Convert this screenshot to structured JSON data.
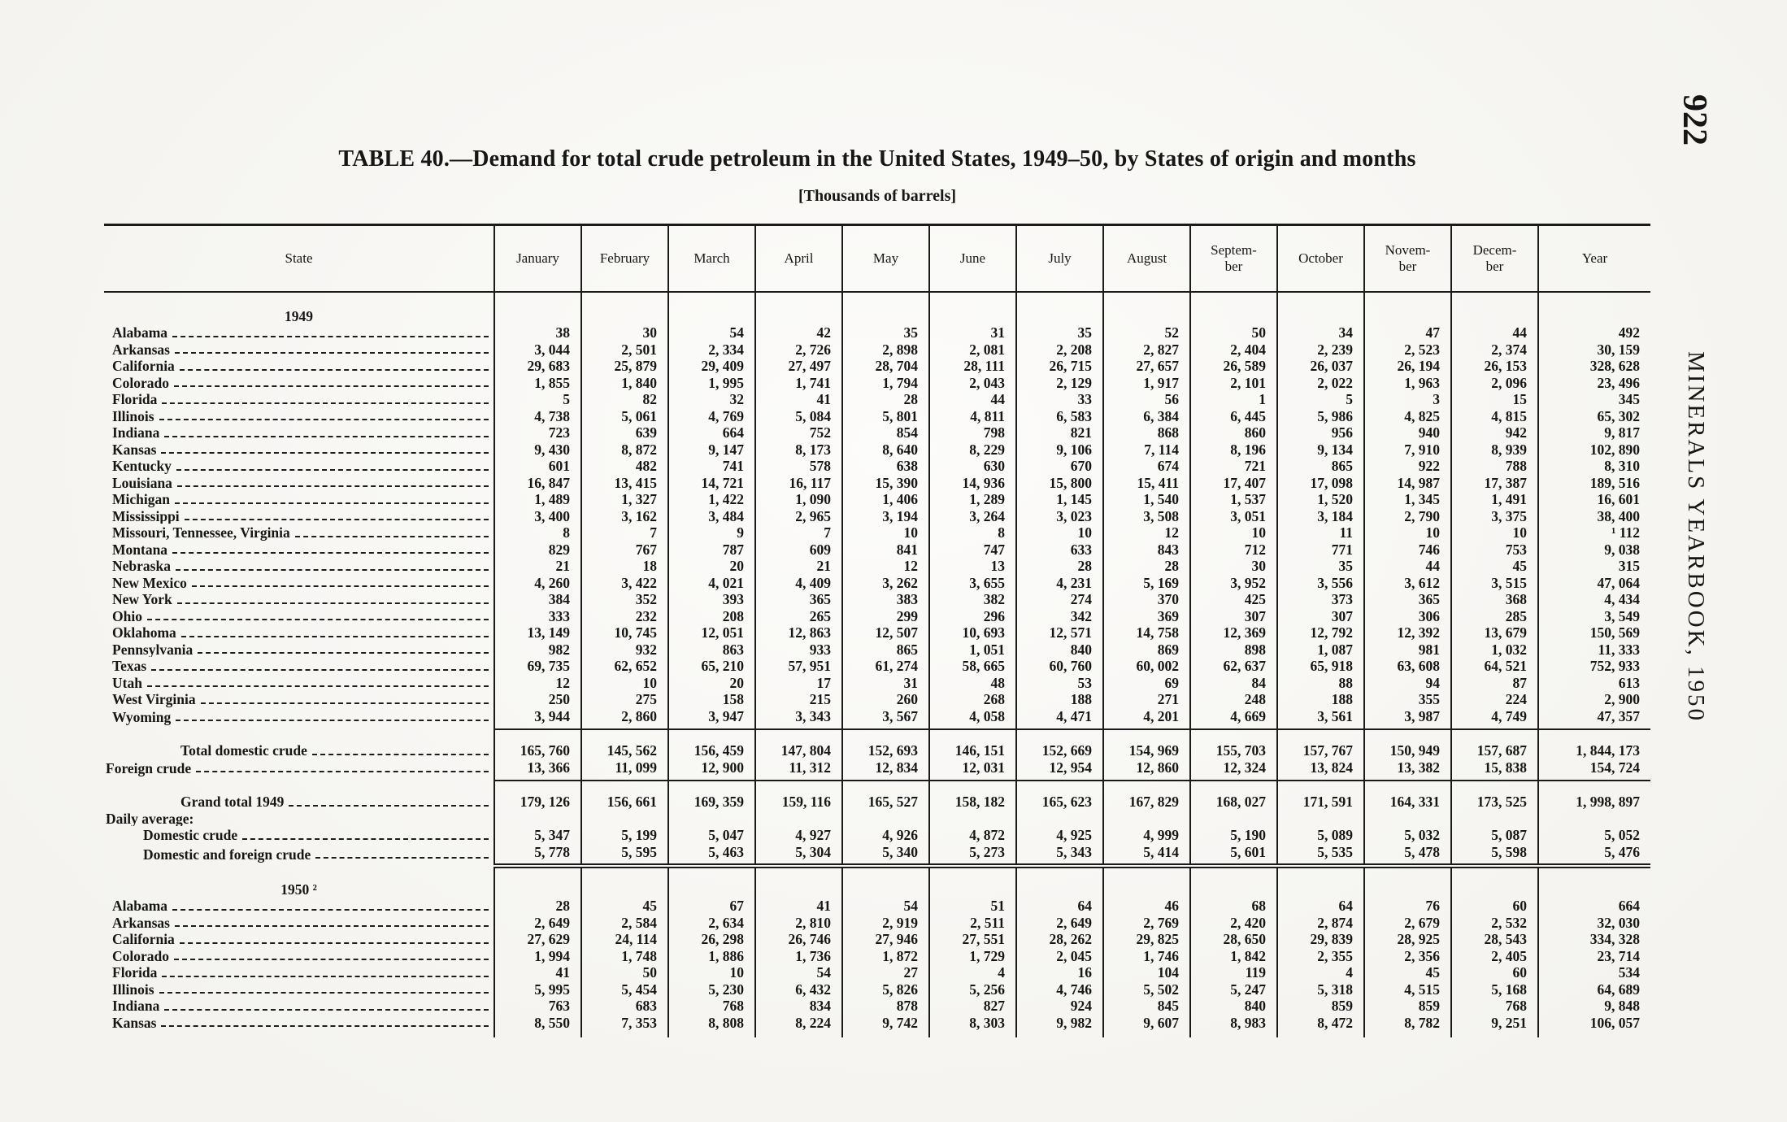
{
  "page": {
    "page_number": "922",
    "running_head": "MINERALS YEARBOOK, 1950",
    "title": "TABLE 40.—Demand for total crude petroleum in the United States, 1949–50, by States of origin and months",
    "subtitle": "[Thousands of barrels]"
  },
  "table": {
    "columns": [
      "State",
      "January",
      "February",
      "March",
      "April",
      "May",
      "June",
      "July",
      "August",
      "Septem-\nber",
      "October",
      "Novem-\nber",
      "Decem-\nber",
      "Year"
    ],
    "rows": [
      {
        "section": true,
        "label": "1949"
      },
      {
        "label": "Alabama",
        "indent": 1,
        "values": [
          "38",
          "30",
          "54",
          "42",
          "35",
          "31",
          "35",
          "52",
          "50",
          "34",
          "47",
          "44",
          "492"
        ]
      },
      {
        "label": "Arkansas",
        "indent": 1,
        "values": [
          "3, 044",
          "2, 501",
          "2, 334",
          "2, 726",
          "2, 898",
          "2, 081",
          "2, 208",
          "2, 827",
          "2, 404",
          "2, 239",
          "2, 523",
          "2, 374",
          "30, 159"
        ]
      },
      {
        "label": "California",
        "indent": 1,
        "values": [
          "29, 683",
          "25, 879",
          "29, 409",
          "27, 497",
          "28, 704",
          "28, 111",
          "26, 715",
          "27, 657",
          "26, 589",
          "26, 037",
          "26, 194",
          "26, 153",
          "328, 628"
        ]
      },
      {
        "label": "Colorado",
        "indent": 1,
        "values": [
          "1, 855",
          "1, 840",
          "1, 995",
          "1, 741",
          "1, 794",
          "2, 043",
          "2, 129",
          "1, 917",
          "2, 101",
          "2, 022",
          "1, 963",
          "2, 096",
          "23, 496"
        ]
      },
      {
        "label": "Florida",
        "indent": 1,
        "values": [
          "5",
          "82",
          "32",
          "41",
          "28",
          "44",
          "33",
          "56",
          "1",
          "5",
          "3",
          "15",
          "345"
        ]
      },
      {
        "label": "Illinois",
        "indent": 1,
        "values": [
          "4, 738",
          "5, 061",
          "4, 769",
          "5, 084",
          "5, 801",
          "4, 811",
          "6, 583",
          "6, 384",
          "6, 445",
          "5, 986",
          "4, 825",
          "4, 815",
          "65, 302"
        ]
      },
      {
        "label": "Indiana",
        "indent": 1,
        "values": [
          "723",
          "639",
          "664",
          "752",
          "854",
          "798",
          "821",
          "868",
          "860",
          "956",
          "940",
          "942",
          "9, 817"
        ]
      },
      {
        "label": "Kansas",
        "indent": 1,
        "values": [
          "9, 430",
          "8, 872",
          "9, 147",
          "8, 173",
          "8, 640",
          "8, 229",
          "9, 106",
          "7, 114",
          "8, 196",
          "9, 134",
          "7, 910",
          "8, 939",
          "102, 890"
        ]
      },
      {
        "label": "Kentucky",
        "indent": 1,
        "values": [
          "601",
          "482",
          "741",
          "578",
          "638",
          "630",
          "670",
          "674",
          "721",
          "865",
          "922",
          "788",
          "8, 310"
        ]
      },
      {
        "label": "Louisiana",
        "indent": 1,
        "values": [
          "16, 847",
          "13, 415",
          "14, 721",
          "16, 117",
          "15, 390",
          "14, 936",
          "15, 800",
          "15, 411",
          "17, 407",
          "17, 098",
          "14, 987",
          "17, 387",
          "189, 516"
        ]
      },
      {
        "label": "Michigan",
        "indent": 1,
        "values": [
          "1, 489",
          "1, 327",
          "1, 422",
          "1, 090",
          "1, 406",
          "1, 289",
          "1, 145",
          "1, 540",
          "1, 537",
          "1, 520",
          "1, 345",
          "1, 491",
          "16, 601"
        ]
      },
      {
        "label": "Mississippi",
        "indent": 1,
        "values": [
          "3, 400",
          "3, 162",
          "3, 484",
          "2, 965",
          "3, 194",
          "3, 264",
          "3, 023",
          "3, 508",
          "3, 051",
          "3, 184",
          "2, 790",
          "3, 375",
          "38, 400"
        ]
      },
      {
        "label": "Missouri, Tennessee, Virginia",
        "indent": 1,
        "values": [
          "8",
          "7",
          "9",
          "7",
          "10",
          "8",
          "10",
          "12",
          "10",
          "11",
          "10",
          "10",
          "¹ 112"
        ]
      },
      {
        "label": "Montana",
        "indent": 1,
        "values": [
          "829",
          "767",
          "787",
          "609",
          "841",
          "747",
          "633",
          "843",
          "712",
          "771",
          "746",
          "753",
          "9, 038"
        ]
      },
      {
        "label": "Nebraska",
        "indent": 1,
        "values": [
          "21",
          "18",
          "20",
          "21",
          "12",
          "13",
          "28",
          "28",
          "30",
          "35",
          "44",
          "45",
          "315"
        ]
      },
      {
        "label": "New Mexico",
        "indent": 1,
        "values": [
          "4, 260",
          "3, 422",
          "4, 021",
          "4, 409",
          "3, 262",
          "3, 655",
          "4, 231",
          "5, 169",
          "3, 952",
          "3, 556",
          "3, 612",
          "3, 515",
          "47, 064"
        ]
      },
      {
        "label": "New York",
        "indent": 1,
        "values": [
          "384",
          "352",
          "393",
          "365",
          "383",
          "382",
          "274",
          "370",
          "425",
          "373",
          "365",
          "368",
          "4, 434"
        ]
      },
      {
        "label": "Ohio",
        "indent": 1,
        "values": [
          "333",
          "232",
          "208",
          "265",
          "299",
          "296",
          "342",
          "369",
          "307",
          "307",
          "306",
          "285",
          "3, 549"
        ]
      },
      {
        "label": "Oklahoma",
        "indent": 1,
        "values": [
          "13, 149",
          "10, 745",
          "12, 051",
          "12, 863",
          "12, 507",
          "10, 693",
          "12, 571",
          "14, 758",
          "12, 369",
          "12, 792",
          "12, 392",
          "13, 679",
          "150, 569"
        ]
      },
      {
        "label": "Pennsylvania",
        "indent": 1,
        "values": [
          "982",
          "932",
          "863",
          "933",
          "865",
          "1, 051",
          "840",
          "869",
          "898",
          "1, 087",
          "981",
          "1, 032",
          "11, 333"
        ]
      },
      {
        "label": "Texas",
        "indent": 1,
        "values": [
          "69, 735",
          "62, 652",
          "65, 210",
          "57, 951",
          "61, 274",
          "58, 665",
          "60, 760",
          "60, 002",
          "62, 637",
          "65, 918",
          "63, 608",
          "64, 521",
          "752, 933"
        ]
      },
      {
        "label": "Utah",
        "indent": 1,
        "values": [
          "12",
          "10",
          "20",
          "17",
          "31",
          "48",
          "53",
          "69",
          "84",
          "88",
          "94",
          "87",
          "613"
        ]
      },
      {
        "label": "West Virginia",
        "indent": 1,
        "values": [
          "250",
          "275",
          "158",
          "215",
          "260",
          "268",
          "188",
          "271",
          "248",
          "188",
          "355",
          "224",
          "2, 900"
        ]
      },
      {
        "label": "Wyoming",
        "indent": 1,
        "rule_after": "single",
        "values": [
          "3, 944",
          "2, 860",
          "3, 947",
          "3, 343",
          "3, 567",
          "4, 058",
          "4, 471",
          "4, 201",
          "4, 669",
          "3, 561",
          "3, 987",
          "4, 749",
          "47, 357"
        ]
      },
      {
        "label": "Total domestic crude",
        "indent": 3,
        "extra_space": true,
        "values": [
          "165, 760",
          "145, 562",
          "156, 459",
          "147, 804",
          "152, 693",
          "146, 151",
          "152, 669",
          "154, 969",
          "155, 703",
          "157, 767",
          "150, 949",
          "157, 687",
          "1, 844, 173"
        ]
      },
      {
        "label": "Foreign crude",
        "indent": 0,
        "rule_after": "single",
        "values": [
          "13, 366",
          "11, 099",
          "12, 900",
          "11, 312",
          "12, 834",
          "12, 031",
          "12, 954",
          "12, 860",
          "12, 324",
          "13, 824",
          "13, 382",
          "15, 838",
          "154, 724"
        ]
      },
      {
        "label": "Grand total 1949",
        "indent": 3,
        "extra_space": true,
        "values": [
          "179, 126",
          "156, 661",
          "169, 359",
          "159, 116",
          "165, 527",
          "158, 182",
          "165, 623",
          "167, 829",
          "168, 027",
          "171, 591",
          "164, 331",
          "173, 525",
          "1, 998, 897"
        ]
      },
      {
        "label": "Daily average:",
        "indent": 0,
        "leader": false,
        "values": [
          "",
          "",
          "",
          "",
          "",
          "",
          "",
          "",
          "",
          "",
          "",
          "",
          ""
        ]
      },
      {
        "label": "Domestic crude",
        "indent": 2,
        "values": [
          "5, 347",
          "5, 199",
          "5, 047",
          "4, 927",
          "4, 926",
          "4, 872",
          "4, 925",
          "4, 999",
          "5, 190",
          "5, 089",
          "5, 032",
          "5, 087",
          "5, 052"
        ]
      },
      {
        "label": "Domestic and foreign crude",
        "indent": 2,
        "rule_after": "double",
        "values": [
          "5, 778",
          "5, 595",
          "5, 463",
          "5, 304",
          "5, 340",
          "5, 273",
          "5, 343",
          "5, 414",
          "5, 601",
          "5, 535",
          "5, 478",
          "5, 598",
          "5, 476"
        ]
      },
      {
        "section": true,
        "label": "1950 ²",
        "extra_space": true
      },
      {
        "label": "Alabama",
        "indent": 1,
        "values": [
          "28",
          "45",
          "67",
          "41",
          "54",
          "51",
          "64",
          "46",
          "68",
          "64",
          "76",
          "60",
          "664"
        ]
      },
      {
        "label": "Arkansas",
        "indent": 1,
        "values": [
          "2, 649",
          "2, 584",
          "2, 634",
          "2, 810",
          "2, 919",
          "2, 511",
          "2, 649",
          "2, 769",
          "2, 420",
          "2, 874",
          "2, 679",
          "2, 532",
          "32, 030"
        ]
      },
      {
        "label": "California",
        "indent": 1,
        "values": [
          "27, 629",
          "24, 114",
          "26, 298",
          "26, 746",
          "27, 946",
          "27, 551",
          "28, 262",
          "29, 825",
          "28, 650",
          "29, 839",
          "28, 925",
          "28, 543",
          "334, 328"
        ]
      },
      {
        "label": "Colorado",
        "indent": 1,
        "values": [
          "1, 994",
          "1, 748",
          "1, 886",
          "1, 736",
          "1, 872",
          "1, 729",
          "2, 045",
          "1, 746",
          "1, 842",
          "2, 355",
          "2, 356",
          "2, 405",
          "23, 714"
        ]
      },
      {
        "label": "Florida",
        "indent": 1,
        "values": [
          "41",
          "50",
          "10",
          "54",
          "27",
          "4",
          "16",
          "104",
          "119",
          "4",
          "45",
          "60",
          "534"
        ]
      },
      {
        "label": "Illinois",
        "indent": 1,
        "values": [
          "5, 995",
          "5, 454",
          "5, 230",
          "6, 432",
          "5, 826",
          "5, 256",
          "4, 746",
          "5, 502",
          "5, 247",
          "5, 318",
          "4, 515",
          "5, 168",
          "64, 689"
        ]
      },
      {
        "label": "Indiana",
        "indent": 1,
        "values": [
          "763",
          "683",
          "768",
          "834",
          "878",
          "827",
          "924",
          "845",
          "840",
          "859",
          "859",
          "768",
          "9, 848"
        ]
      },
      {
        "label": "Kansas",
        "indent": 1,
        "values": [
          "8, 550",
          "7, 353",
          "8, 808",
          "8, 224",
          "9, 742",
          "8, 303",
          "9, 982",
          "9, 607",
          "8, 983",
          "8, 472",
          "8, 782",
          "9, 251",
          "106, 057"
        ]
      }
    ]
  }
}
